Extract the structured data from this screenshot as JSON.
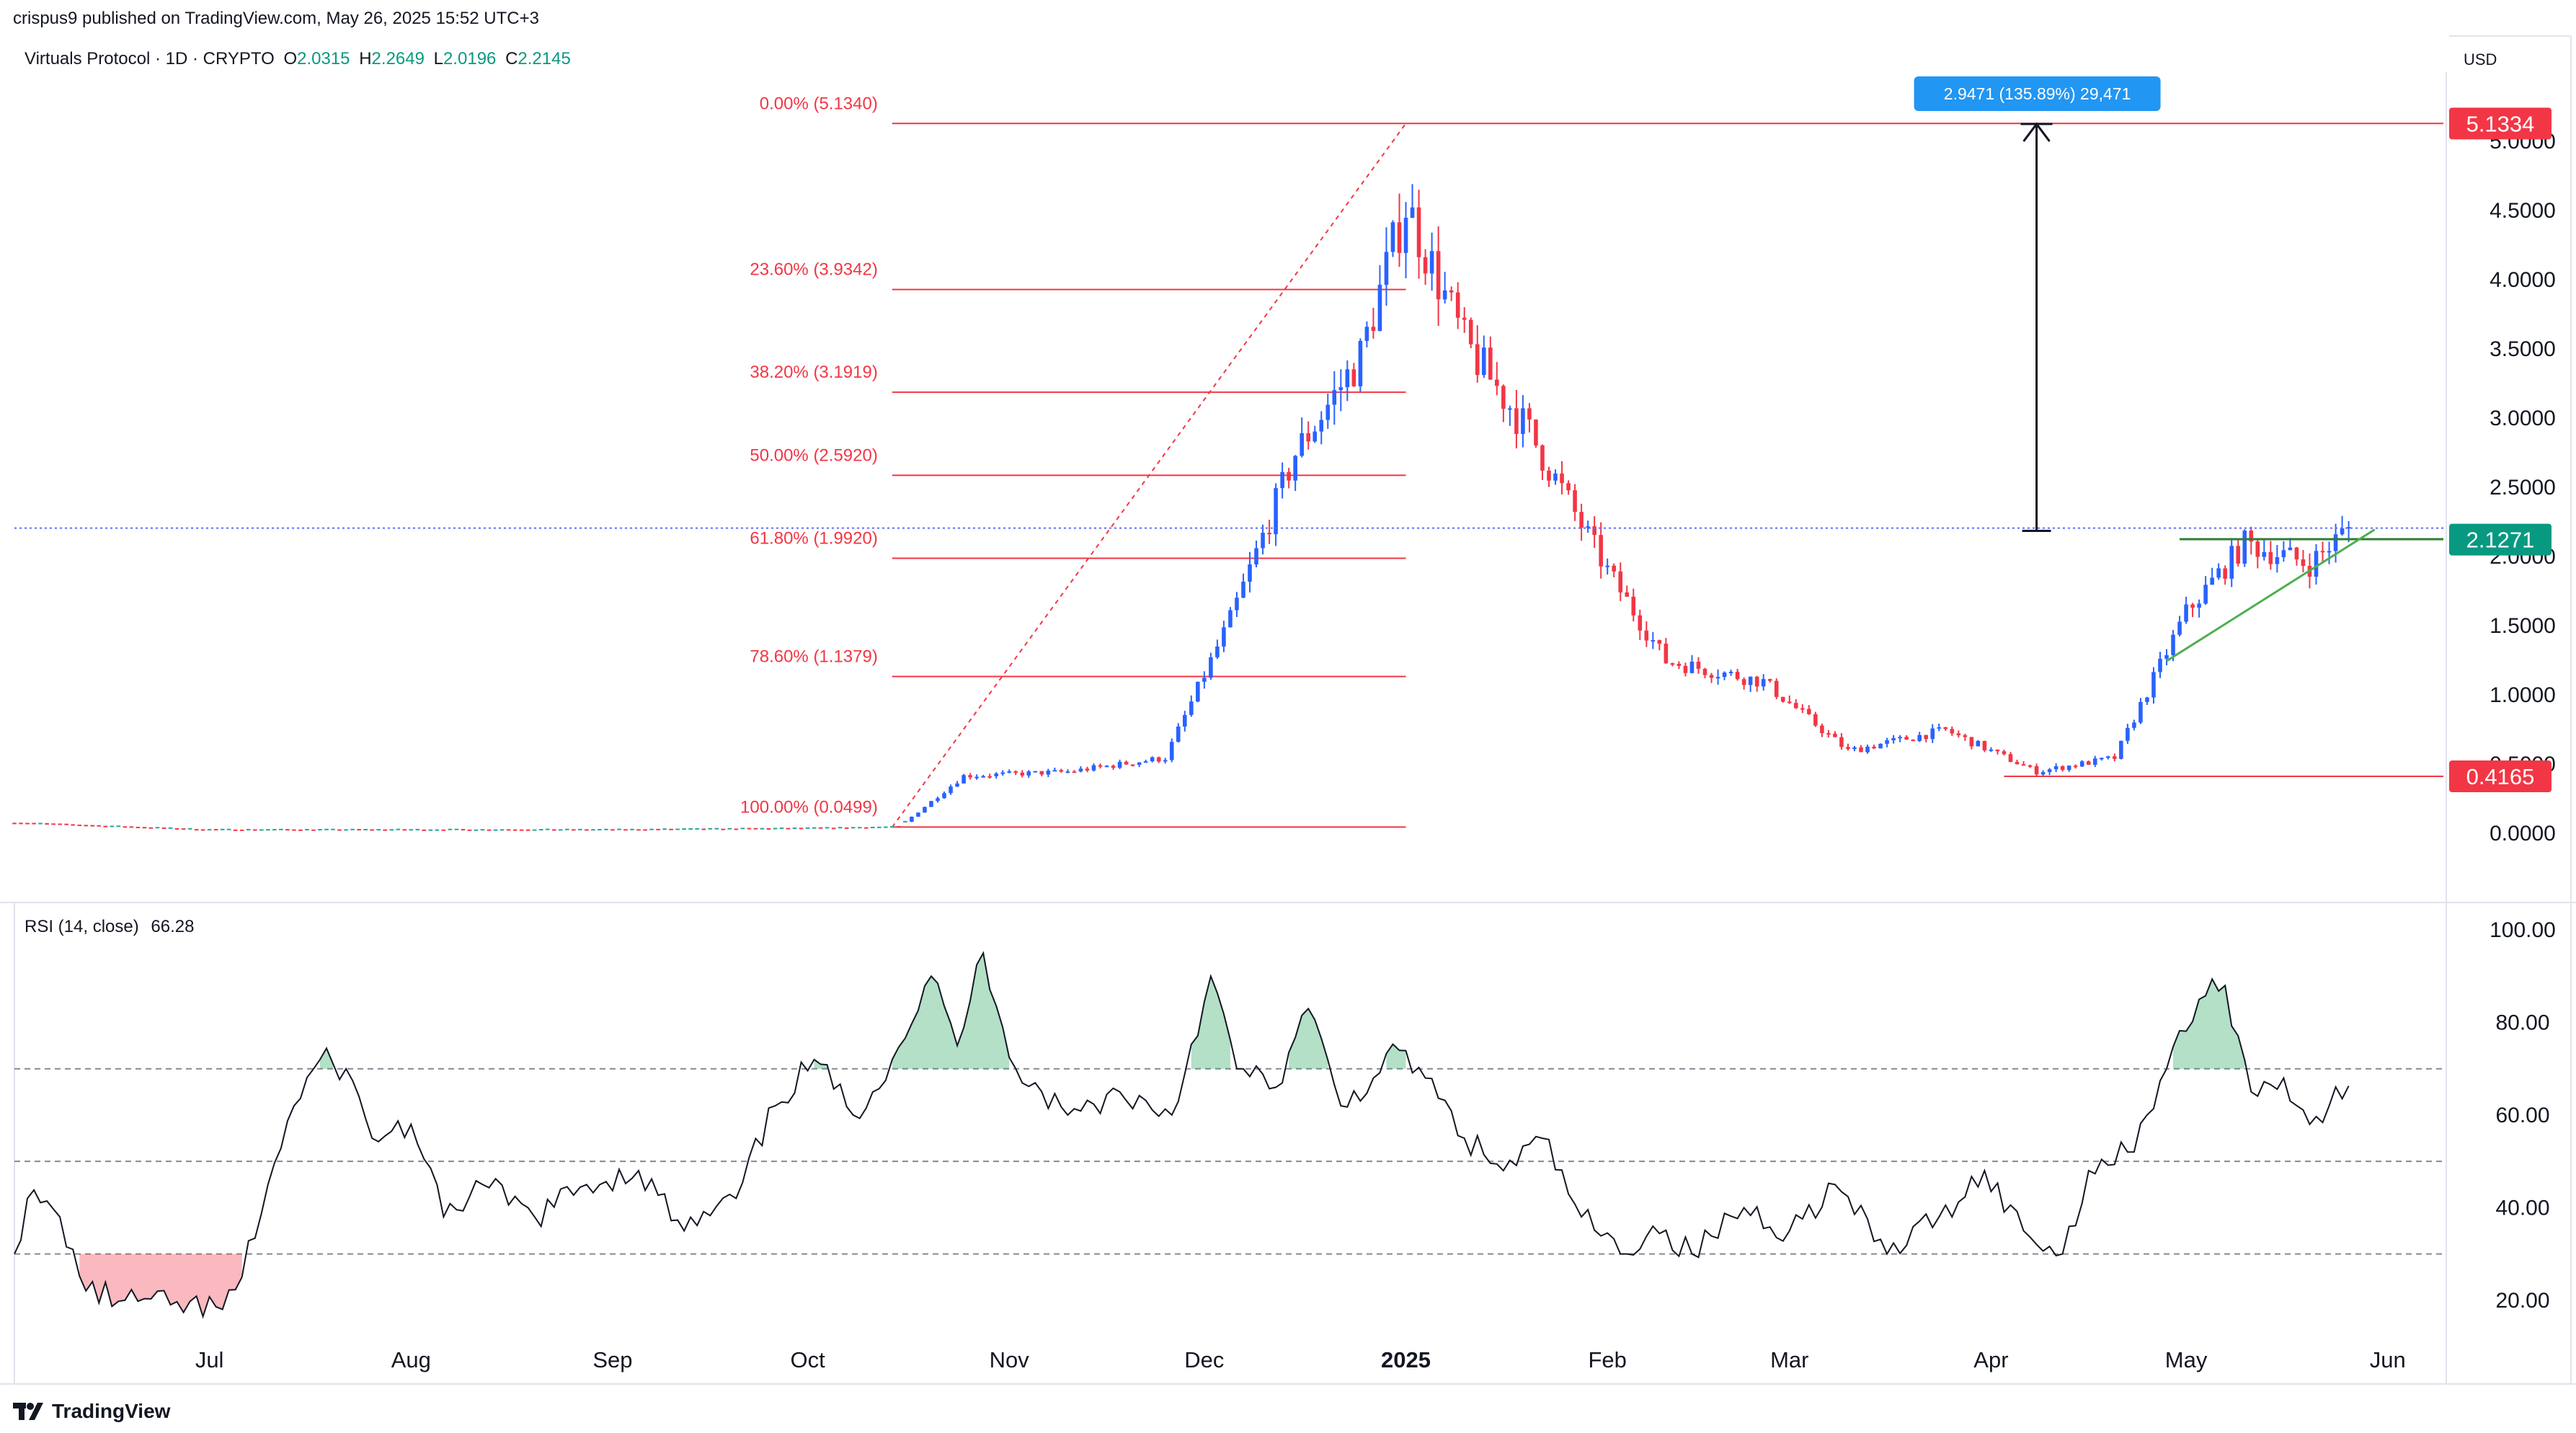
{
  "header": {
    "published": "crispus9 published on TradingView.com, May 26, 2025 15:52 UTC+3",
    "symbol": "Virtuals Protocol · 1D · CRYPTO",
    "ohlc": [
      {
        "k": "O",
        "v": "2.0315"
      },
      {
        "k": "H",
        "v": "2.2649"
      },
      {
        "k": "L",
        "v": "2.0196"
      },
      {
        "k": "C",
        "v": "2.2145"
      }
    ],
    "currency": "USD"
  },
  "rsi_label": {
    "name": "RSI (14, close)",
    "value": "66.28"
  },
  "footer": {
    "brand": "TradingView"
  },
  "colors": {
    "up": "#2962ff",
    "down": "#f23645",
    "fib": "#f23645",
    "rsi_line": "#131722",
    "ob_fill": "#26a65b",
    "os_fill": "#f23645",
    "badge_red": "#f23645",
    "badge_green": "#089981",
    "measure": "#2196f3"
  },
  "chart_data": [
    {
      "type": "candlestick",
      "title": "Virtuals Protocol · 1D · CRYPTO",
      "y_axis_ticks": [
        "0.0000",
        "0.5000",
        "1.0000",
        "1.5000",
        "2.0000",
        "2.5000",
        "3.0000",
        "3.5000",
        "4.0000",
        "4.5000",
        "5.0000"
      ],
      "ylim": [
        -0.3,
        5.5
      ],
      "x_axis_labels": [
        "Jul",
        "Aug",
        "Sep",
        "Oct",
        "Nov",
        "Dec",
        "2025",
        "Feb",
        "Mar",
        "Apr",
        "May",
        "Jun"
      ],
      "price_badges": [
        {
          "value": "5.1334",
          "price": 5.1334,
          "color": "red"
        },
        {
          "value": "2.1271",
          "price": 2.1271,
          "color": "green"
        },
        {
          "value": "0.4165",
          "price": 0.4165,
          "color": "red"
        }
      ],
      "fib_levels": [
        {
          "label": "0.00% (5.1340)",
          "price": 5.134
        },
        {
          "label": "23.60% (3.9342)",
          "price": 3.9342
        },
        {
          "label": "38.20% (3.1919)",
          "price": 3.1919
        },
        {
          "label": "50.00% (2.5920)",
          "price": 2.592
        },
        {
          "label": "61.80% (1.9920)",
          "price": 1.992
        },
        {
          "label": "78.60% (1.1379)",
          "price": 1.1379
        },
        {
          "label": "100.00% (0.0499)",
          "price": 0.0499
        }
      ],
      "measure_label": "2.9471 (135.89%) 29,471",
      "measure_range": [
        2.19,
        5.13
      ],
      "current_price_line": 2.21,
      "price_path_estimate": [
        {
          "date": "2024-06-01",
          "close": 0.08
        },
        {
          "date": "2024-07-01",
          "close": 0.03
        },
        {
          "date": "2024-08-01",
          "close": 0.03
        },
        {
          "date": "2024-09-01",
          "close": 0.03
        },
        {
          "date": "2024-10-01",
          "close": 0.04
        },
        {
          "date": "2024-10-15",
          "close": 0.05
        },
        {
          "date": "2024-10-25",
          "close": 0.42
        },
        {
          "date": "2024-11-10",
          "close": 0.45
        },
        {
          "date": "2024-11-25",
          "close": 0.55
        },
        {
          "date": "2024-12-05",
          "close": 1.55
        },
        {
          "date": "2024-12-15",
          "close": 2.75
        },
        {
          "date": "2024-12-25",
          "close": 3.45
        },
        {
          "date": "2025-01-01",
          "close": 4.55
        },
        {
          "date": "2025-01-10",
          "close": 3.55
        },
        {
          "date": "2025-01-20",
          "close": 2.9
        },
        {
          "date": "2025-02-01",
          "close": 1.9
        },
        {
          "date": "2025-02-10",
          "close": 1.25
        },
        {
          "date": "2025-02-25",
          "close": 1.1
        },
        {
          "date": "2025-03-10",
          "close": 0.6
        },
        {
          "date": "2025-03-25",
          "close": 0.75
        },
        {
          "date": "2025-04-08",
          "close": 0.45
        },
        {
          "date": "2025-04-20",
          "close": 0.55
        },
        {
          "date": "2025-05-01",
          "close": 1.6
        },
        {
          "date": "2025-05-10",
          "close": 2.1
        },
        {
          "date": "2025-05-20",
          "close": 1.95
        },
        {
          "date": "2025-05-26",
          "close": 2.21
        }
      ]
    },
    {
      "type": "line",
      "title": "RSI (14, close)",
      "y_axis_ticks": [
        "20.00",
        "40.00",
        "60.00",
        "80.00",
        "100.00"
      ],
      "ylim": [
        10,
        105
      ],
      "bands": [
        30,
        50,
        70
      ],
      "series": [
        {
          "values_estimate": [
            [
              "2024-06-01",
              30
            ],
            [
              "2024-06-03",
              42
            ],
            [
              "2024-06-08",
              38
            ],
            [
              "2024-06-12",
              22
            ],
            [
              "2024-06-18",
              20
            ],
            [
              "2024-06-25",
              19
            ],
            [
              "2024-07-03",
              18
            ],
            [
              "2024-07-06",
              25
            ],
            [
              "2024-07-10",
              45
            ],
            [
              "2024-07-14",
              62
            ],
            [
              "2024-07-18",
              72
            ],
            [
              "2024-07-22",
              70
            ],
            [
              "2024-07-26",
              55
            ],
            [
              "2024-08-01",
              58
            ],
            [
              "2024-08-06",
              38
            ],
            [
              "2024-08-12",
              45
            ],
            [
              "2024-08-20",
              38
            ],
            [
              "2024-08-28",
              45
            ],
            [
              "2024-09-05",
              48
            ],
            [
              "2024-09-12",
              35
            ],
            [
              "2024-09-20",
              42
            ],
            [
              "2024-09-26",
              62
            ],
            [
              "2024-10-02",
              72
            ],
            [
              "2024-10-08",
              60
            ],
            [
              "2024-10-14",
              72
            ],
            [
              "2024-10-20",
              90
            ],
            [
              "2024-10-24",
              75
            ],
            [
              "2024-10-28",
              95
            ],
            [
              "2024-11-02",
              70
            ],
            [
              "2024-11-10",
              60
            ],
            [
              "2024-11-18",
              65
            ],
            [
              "2024-11-26",
              60
            ],
            [
              "2024-12-02",
              90
            ],
            [
              "2024-12-06",
              70
            ],
            [
              "2024-12-12",
              66
            ],
            [
              "2024-12-17",
              83
            ],
            [
              "2024-12-22",
              62
            ],
            [
              "2024-12-27",
              68
            ],
            [
              "2024-12-31",
              74
            ],
            [
              "2025-01-04",
              68
            ],
            [
              "2025-01-10",
              55
            ],
            [
              "2025-01-16",
              48
            ],
            [
              "2025-01-22",
              55
            ],
            [
              "2025-01-28",
              38
            ],
            [
              "2025-02-03",
              30
            ],
            [
              "2025-02-08",
              36
            ],
            [
              "2025-02-14",
              30
            ],
            [
              "2025-02-22",
              40
            ],
            [
              "2025-03-01",
              35
            ],
            [
              "2025-03-08",
              45
            ],
            [
              "2025-03-16",
              30
            ],
            [
              "2025-03-24",
              38
            ],
            [
              "2025-03-31",
              48
            ],
            [
              "2025-04-06",
              35
            ],
            [
              "2025-04-12",
              30
            ],
            [
              "2025-04-16",
              48
            ],
            [
              "2025-04-22",
              52
            ],
            [
              "2025-04-28",
              70
            ],
            [
              "2025-05-03",
              85
            ],
            [
              "2025-05-07",
              88
            ],
            [
              "2025-05-11",
              65
            ],
            [
              "2025-05-16",
              68
            ],
            [
              "2025-05-20",
              58
            ],
            [
              "2025-05-23",
              62
            ],
            [
              "2025-05-26",
              66.28
            ]
          ]
        }
      ]
    }
  ]
}
